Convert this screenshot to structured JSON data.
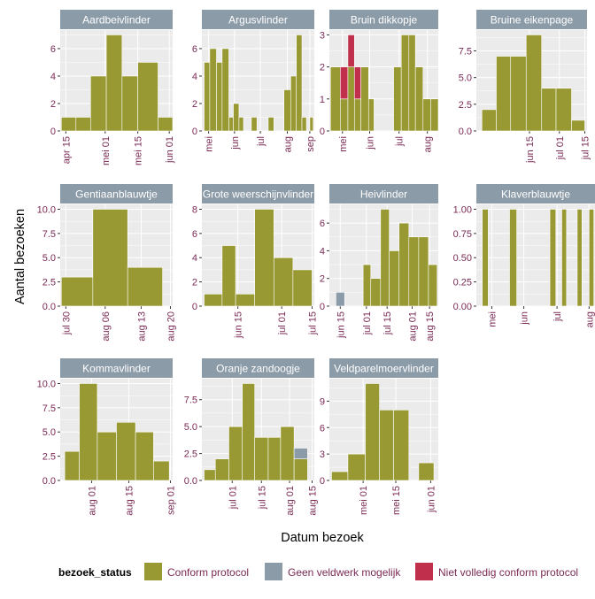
{
  "chart_data": {
    "type": "bar",
    "ylabel": "Aantal bezoeken",
    "xlabel": "Datum bezoek",
    "legend": {
      "title": "bezoek_status",
      "position": "bottom",
      "entries": [
        {
          "key": "conform",
          "label": "Conform protocol",
          "color": "#999933"
        },
        {
          "key": "geen",
          "label": "Geen veldwerk mogelijk",
          "color": "#8C9BA8"
        },
        {
          "key": "niet",
          "label": "Niet volledig conform protocol",
          "color": "#C0304C"
        }
      ]
    },
    "colors": {
      "strip_bg": "#8C9BA8",
      "strip_text": "#ffffff",
      "panel_bg": "#EBEBEB",
      "tick_text": "#7A2A55",
      "grid": "#ffffff"
    },
    "panels": [
      {
        "title": "Aardbeivlinder",
        "x_ticks": [
          "apr 15",
          "mei 01",
          "mei 15",
          "jun 01"
        ],
        "y_ticks": [
          "0",
          "2",
          "4",
          "6"
        ],
        "ylim": [
          0,
          7.35
        ],
        "bars": [
          {
            "week": "apr 15",
            "values": {
              "conform": 1
            }
          },
          {
            "week": "apr 22",
            "values": {
              "conform": 1
            }
          },
          {
            "week": "apr 29",
            "values": {
              "conform": 4
            }
          },
          {
            "week": "mei 06",
            "values": {
              "conform": 7
            }
          },
          {
            "week": "mei 13",
            "values": {
              "conform": 4
            }
          },
          {
            "week": "mei 20",
            "values": {
              "conform": 5
            }
          },
          {
            "week": "mei 27",
            "values": {
              "conform": 1
            }
          }
        ]
      },
      {
        "title": "Argusvlinder",
        "x_ticks": [
          "mei",
          "jun",
          "jul",
          "aug",
          "sep"
        ],
        "y_ticks": [
          "0",
          "2",
          "4",
          "6"
        ],
        "ylim": [
          0,
          7.35
        ],
        "bars": [
          {
            "week": "apr w4",
            "values": {
              "conform": 5
            }
          },
          {
            "week": "mei w1",
            "values": {
              "conform": 6
            }
          },
          {
            "week": "mei w2",
            "values": {
              "conform": 5
            }
          },
          {
            "week": "mei w3",
            "values": {
              "conform": 6
            }
          },
          {
            "week": "mei w4",
            "values": {
              "conform": 1
            }
          },
          {
            "week": "jun w1",
            "values": {
              "conform": 2
            }
          },
          {
            "week": "jun w2",
            "values": {
              "conform": 1
            }
          },
          {
            "week": "jun w4",
            "values": {
              "conform": 1
            }
          },
          {
            "week": "jul w2",
            "values": {
              "conform": 1
            }
          },
          {
            "week": "jul w4",
            "values": {
              "conform": 3
            }
          },
          {
            "week": "aug w1",
            "values": {
              "conform": 4
            }
          },
          {
            "week": "aug w2",
            "values": {
              "conform": 7
            }
          },
          {
            "week": "aug w3",
            "values": {
              "conform": 1
            }
          },
          {
            "week": "sep w1",
            "values": {
              "conform": 1
            }
          }
        ]
      },
      {
        "title": "Bruin dikkopje",
        "x_ticks": [
          "mei",
          "jun",
          "jul",
          "aug"
        ],
        "y_ticks": [
          "0",
          "1",
          "2",
          "3"
        ],
        "ylim": [
          0,
          3.15
        ],
        "bars": [
          {
            "week": "apr w4",
            "values": {
              "conform": 2
            }
          },
          {
            "week": "mei w1",
            "values": {
              "conform": 1,
              "niet": 1
            }
          },
          {
            "week": "mei w2",
            "values": {
              "conform": 2,
              "niet": 1
            }
          },
          {
            "week": "mei w3",
            "values": {
              "conform": 1,
              "niet": 1
            }
          },
          {
            "week": "mei w4",
            "values": {
              "conform": 2
            }
          },
          {
            "week": "jun w1",
            "values": {
              "conform": 1
            }
          },
          {
            "week": "jun w4",
            "values": {
              "conform": 2
            }
          },
          {
            "week": "jul w1",
            "values": {
              "conform": 3
            }
          },
          {
            "week": "jul w2",
            "values": {
              "conform": 3
            }
          },
          {
            "week": "jul w3",
            "values": {
              "conform": 2
            }
          },
          {
            "week": "jul w4",
            "values": {
              "conform": 1
            }
          },
          {
            "week": "aug w1",
            "values": {
              "conform": 1
            }
          }
        ]
      },
      {
        "title": "Bruine eikenpage",
        "x_ticks": [
          "jun 15",
          "jul 01",
          "jul 15"
        ],
        "y_ticks": [
          "0.0",
          "2.5",
          "5.0",
          "7.5"
        ],
        "ylim": [
          0,
          9.45
        ],
        "bars": [
          {
            "week": "jun 03",
            "values": {
              "conform": 2
            }
          },
          {
            "week": "jun 10",
            "values": {
              "conform": 7
            }
          },
          {
            "week": "jun 17",
            "values": {
              "conform": 7
            }
          },
          {
            "week": "jun 24",
            "values": {
              "conform": 9
            }
          },
          {
            "week": "jul 01",
            "values": {
              "conform": 4
            }
          },
          {
            "week": "jul 08",
            "values": {
              "conform": 4
            }
          },
          {
            "week": "jul 15",
            "values": {
              "conform": 1
            }
          }
        ]
      },
      {
        "title": "Gentiaanblauwtje",
        "x_ticks": [
          "jul 30",
          "aug 06",
          "aug 13",
          "aug 20"
        ],
        "y_ticks": [
          "0.0",
          "2.5",
          "5.0",
          "7.5",
          "10.0"
        ],
        "ylim": [
          0,
          10.5
        ],
        "bars": [
          {
            "week": "jul 30",
            "values": {
              "conform": 3
            }
          },
          {
            "week": "aug 06",
            "values": {
              "conform": 10
            }
          },
          {
            "week": "aug 13",
            "values": {
              "conform": 4
            }
          }
        ]
      },
      {
        "title": "Grote weerschijnvlinder",
        "x_ticks": [
          "jun 15",
          "jul 01",
          "jul 15"
        ],
        "y_ticks": [
          "0",
          "2",
          "4",
          "6",
          "8"
        ],
        "ylim": [
          0,
          8.4
        ],
        "bars": [
          {
            "week": "jun 03",
            "values": {
              "conform": 1
            }
          },
          {
            "week": "jun 10",
            "values": {
              "conform": 5
            }
          },
          {
            "week": "jun 17",
            "values": {
              "conform": 1
            }
          },
          {
            "week": "jun 24",
            "values": {
              "conform": 8
            }
          },
          {
            "week": "jul 01",
            "values": {
              "conform": 4
            }
          },
          {
            "week": "jul 08",
            "values": {
              "conform": 3
            }
          }
        ]
      },
      {
        "title": "Heivlinder",
        "x_ticks": [
          "jun 15",
          "jul 01",
          "jul 15",
          "aug 01",
          "aug 15"
        ],
        "y_ticks": [
          "0",
          "2",
          "4",
          "6"
        ],
        "ylim": [
          0,
          7.35
        ],
        "bars": [
          {
            "week": "jun 03",
            "values": {
              "geen": 1
            }
          },
          {
            "week": "jun 24",
            "values": {
              "conform": 3
            }
          },
          {
            "week": "jul 01",
            "values": {
              "conform": 2
            }
          },
          {
            "week": "jul 08",
            "values": {
              "conform": 7
            }
          },
          {
            "week": "jul 15",
            "values": {
              "conform": 4
            }
          },
          {
            "week": "jul 22",
            "values": {
              "conform": 6
            }
          },
          {
            "week": "jul 29",
            "values": {
              "conform": 5
            }
          },
          {
            "week": "aug 05",
            "values": {
              "conform": 5
            }
          },
          {
            "week": "aug 12",
            "values": {
              "conform": 3
            }
          }
        ]
      },
      {
        "title": "Klaverblauwtje",
        "x_ticks": [
          "mei",
          "jun",
          "jul",
          "aug"
        ],
        "y_ticks": [
          "0.00",
          "0.25",
          "0.50",
          "0.75",
          "1.00"
        ],
        "ylim": [
          0,
          1.05
        ],
        "bars": [
          {
            "week": "apr w4",
            "values": {
              "conform": 1
            }
          },
          {
            "week": "mei w3",
            "values": {
              "conform": 1
            }
          },
          {
            "week": "jun w3",
            "values": {
              "conform": 1
            }
          },
          {
            "week": "jul w1",
            "values": {
              "conform": 1
            }
          },
          {
            "week": "jul w3",
            "values": {
              "conform": 1
            }
          },
          {
            "week": "jul w5",
            "values": {
              "conform": 1
            }
          }
        ]
      },
      {
        "title": "Kommavlinder",
        "x_ticks": [
          "aug 01",
          "aug 15",
          "sep 01"
        ],
        "y_ticks": [
          "0.0",
          "2.5",
          "5.0",
          "7.5",
          "10.0"
        ],
        "ylim": [
          0,
          10.5
        ],
        "bars": [
          {
            "week": "jul 22",
            "values": {
              "conform": 3
            }
          },
          {
            "week": "jul 29",
            "values": {
              "conform": 10
            }
          },
          {
            "week": "aug 05",
            "values": {
              "conform": 5
            }
          },
          {
            "week": "aug 12",
            "values": {
              "conform": 6
            }
          },
          {
            "week": "aug 19",
            "values": {
              "conform": 5
            }
          },
          {
            "week": "aug 26",
            "values": {
              "conform": 2
            }
          }
        ]
      },
      {
        "title": "Oranje zandoogje",
        "x_ticks": [
          "jul 01",
          "jul 15",
          "aug 01",
          "aug 15"
        ],
        "y_ticks": [
          "0.0",
          "2.5",
          "5.0",
          "7.5"
        ],
        "ylim": [
          0,
          9.45
        ],
        "bars": [
          {
            "week": "jun 17",
            "values": {
              "conform": 1
            }
          },
          {
            "week": "jun 24",
            "values": {
              "conform": 2
            }
          },
          {
            "week": "jul 01",
            "values": {
              "conform": 5
            }
          },
          {
            "week": "jul 08",
            "values": {
              "conform": 9
            }
          },
          {
            "week": "jul 15",
            "values": {
              "conform": 4
            }
          },
          {
            "week": "jul 22",
            "values": {
              "conform": 4
            }
          },
          {
            "week": "jul 29",
            "values": {
              "conform": 5
            }
          },
          {
            "week": "aug 05",
            "values": {
              "conform": 2,
              "geen": 1
            }
          }
        ]
      },
      {
        "title": "Veldparelmoervlinder",
        "x_ticks": [
          "mei 01",
          "mei 15",
          "jun 01"
        ],
        "y_ticks": [
          "0",
          "3",
          "6",
          "9"
        ],
        "ylim": [
          0,
          11.55
        ],
        "bars": [
          {
            "week": "apr 22",
            "values": {
              "conform": 1
            }
          },
          {
            "week": "apr 29",
            "values": {
              "conform": 3
            }
          },
          {
            "week": "mei 06",
            "values": {
              "conform": 11
            }
          },
          {
            "week": "mei 13",
            "values": {
              "conform": 8
            }
          },
          {
            "week": "mei 20",
            "values": {
              "conform": 8
            }
          },
          {
            "week": "jun 03",
            "values": {
              "conform": 2
            }
          }
        ]
      }
    ]
  }
}
